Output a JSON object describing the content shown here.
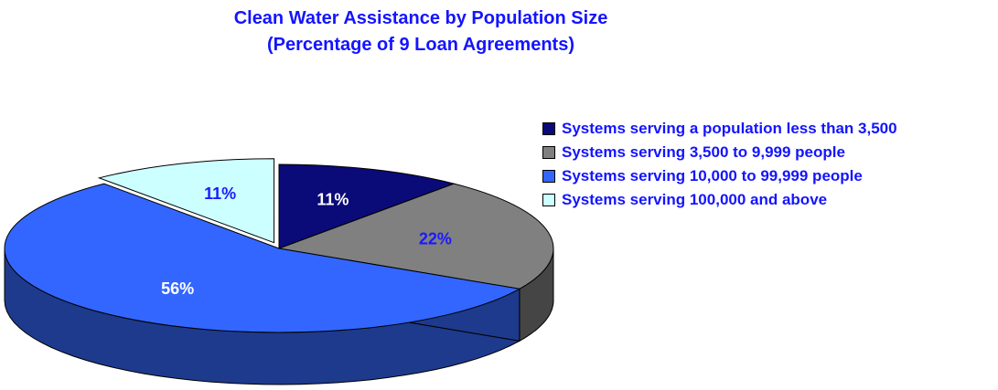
{
  "chart_data": {
    "type": "pie",
    "title": "Clean Water Assistance by Population Size",
    "subtitle": "(Percentage of 9 Loan Agreements)",
    "unit": "%",
    "series": [
      {
        "values": [
          11,
          22,
          56,
          11
        ]
      }
    ],
    "slices": [
      {
        "label": "Systems serving a population less than 3,500",
        "value": 11,
        "data_label": "11%",
        "color": "#0a0a78",
        "side_color": "#070753",
        "label_color": "#ffffff"
      },
      {
        "label": "Systems serving 3,500 to 9,999 people",
        "value": 22,
        "data_label": "22%",
        "color": "#808080",
        "side_color": "#454545",
        "label_color": "#1a1aff"
      },
      {
        "label": "Systems serving 10,000 to 99,999 people",
        "value": 56,
        "data_label": "56%",
        "color": "#3366ff",
        "side_color": "#1e3a8c",
        "label_color": "#ffffff"
      },
      {
        "label": "Systems serving 100,000 and above",
        "value": 11,
        "data_label": "11%",
        "color": "#ccffff",
        "side_color": "#7fa8a8",
        "label_color": "#1a1aff"
      }
    ],
    "legend_position": "right",
    "exploded_slice": "Systems serving 100,000 and above",
    "three_d": true
  }
}
